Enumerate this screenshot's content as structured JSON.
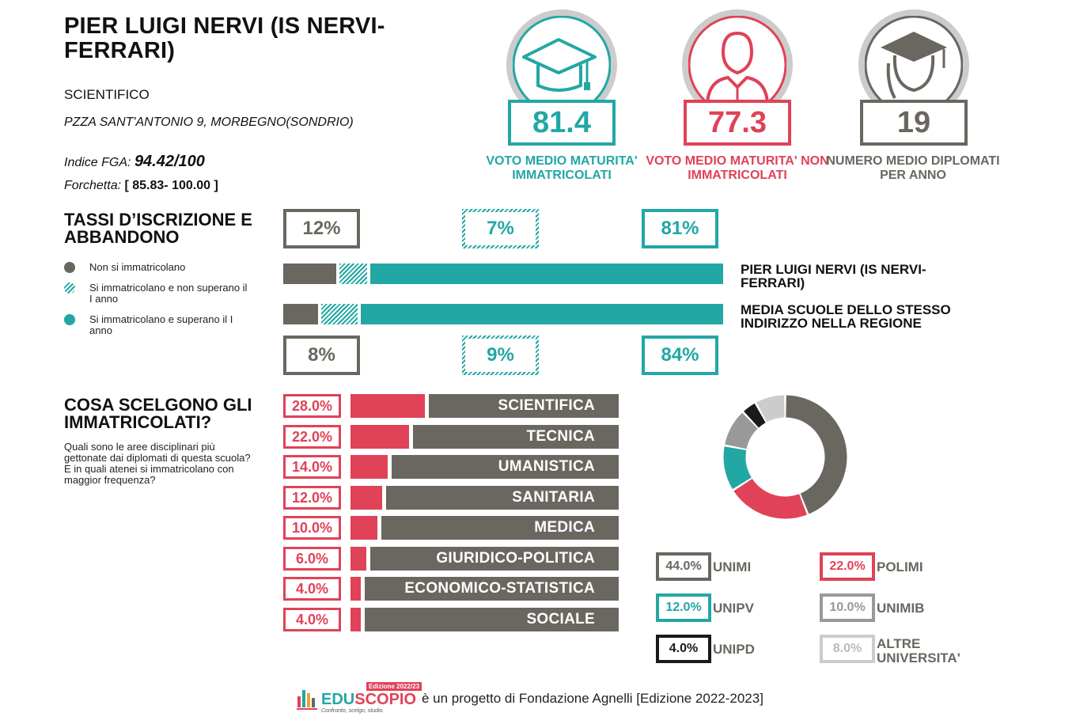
{
  "school": {
    "name": "PIER LUIGI NERVI (IS NERVI-FERRARI)",
    "type": "SCIENTIFICO",
    "address": "PZZA SANT'ANTONIO 9, MORBEGNO(SONDRIO)",
    "fga_label": "Indice FGA:",
    "fga_value": "94.42/100",
    "fork_label": "Forchetta:",
    "fork_value": "[ 85.83- 100.00 ]"
  },
  "kpis": [
    {
      "value": "81.4",
      "label": "VOTO MEDIO MATURITA' IMMATRICOLATI",
      "color": "#22a7a5",
      "icon": "graduation-cap-icon"
    },
    {
      "value": "77.3",
      "label": "VOTO MEDIO MATURITA' NON IMMATRICOLATI",
      "color": "#e04257",
      "icon": "person-icon"
    },
    {
      "value": "19",
      "label": "NUMERO MEDIO DIPLOMATI PER ANNO",
      "color": "#6a6760",
      "icon": "graduate-person-icon"
    }
  ],
  "enrollment": {
    "title": "TASSI D’ISCRIZIONE E ABBANDONO",
    "legend": [
      {
        "label": "Non si immatricolano",
        "color": "#6a6760"
      },
      {
        "label": "Si immatricolano e non superano il I anno",
        "color": "#22a7a5"
      },
      {
        "label": "Si immatricolano e superano il I anno",
        "color": "#22a7a5"
      }
    ],
    "school_label": "PIER LUIGI NERVI (IS NERVI-FERRARI)",
    "region_label": "MEDIA SCUOLE DELLO STESSO INDIRIZZO NELLA REGIONE",
    "school_pct": [
      "12%",
      "7%",
      "81%"
    ],
    "region_pct": [
      "8%",
      "9%",
      "84%"
    ]
  },
  "areas": {
    "title": "COSA SCELGONO GLI IMMATRICOLATI?",
    "desc": "Quali sono le aree disciplinari più gettonate dai diplomati di questa scuola?\nE in quali atenei si immatricolano con maggior frequenza?"
  },
  "universities": [
    {
      "pct": "44.0%",
      "name": "UNIMI",
      "color": "#6a6760"
    },
    {
      "pct": "22.0%",
      "name": "POLIMI",
      "color": "#e04257"
    },
    {
      "pct": "12.0%",
      "name": "UNIPV",
      "color": "#22a7a5"
    },
    {
      "pct": "10.0%",
      "name": "UNIMIB",
      "color": "#999999"
    },
    {
      "pct": "4.0%",
      "name": "UNIPD",
      "color": "#1a1a1a"
    },
    {
      "pct": "8.0%",
      "name": "ALTRE UNIVERSITA'",
      "color": "#cccccc"
    }
  ],
  "footer": {
    "logo_text_1": "EDU",
    "logo_text_2": "SCOPIO",
    "edition_badge": "Edizione 2022/23",
    "tagline": "Confronto, scelgo, studio.",
    "text": "è un progetto di Fondazione Agnelli [Edizione 2022-2023]"
  },
  "chart_data": [
    {
      "type": "bar",
      "stacked": true,
      "categories": [
        "PIER LUIGI NERVI (IS NERVI-FERRARI)",
        "MEDIA SCUOLE DELLO STESSO INDIRIZZO NELLA REGIONE"
      ],
      "series": [
        {
          "name": "Non si immatricolano",
          "values": [
            12,
            8
          ],
          "color": "#6a6760"
        },
        {
          "name": "Si immatricolano e non superano il I anno",
          "values": [
            7,
            9
          ],
          "color": "#22a7a5"
        },
        {
          "name": "Si immatricolano e superano il I anno",
          "values": [
            81,
            84
          ],
          "color": "#22a7a5"
        }
      ]
    },
    {
      "type": "bar",
      "categories": [
        "SCIENTIFICA",
        "TECNICA",
        "UMANISTICA",
        "SANITARIA",
        "MEDICA",
        "GIURIDICO-POLITICA",
        "ECONOMICO-STATISTICA",
        "SOCIALE"
      ],
      "values": [
        28.0,
        22.0,
        14.0,
        12.0,
        10.0,
        6.0,
        4.0,
        4.0
      ],
      "labels": [
        "28.0%",
        "22.0%",
        "14.0%",
        "12.0%",
        "10.0%",
        "6.0%",
        "4.0%",
        "4.0%"
      ]
    },
    {
      "type": "pie",
      "donut": true,
      "categories": [
        "UNIMI",
        "POLIMI",
        "UNIPV",
        "UNIMIB",
        "UNIPD",
        "ALTRE UNIVERSITA'"
      ],
      "values": [
        44.0,
        22.0,
        12.0,
        10.0,
        4.0,
        8.0
      ],
      "colors": [
        "#6a6760",
        "#e04257",
        "#22a7a5",
        "#999999",
        "#1a1a1a",
        "#cccccc"
      ]
    }
  ]
}
